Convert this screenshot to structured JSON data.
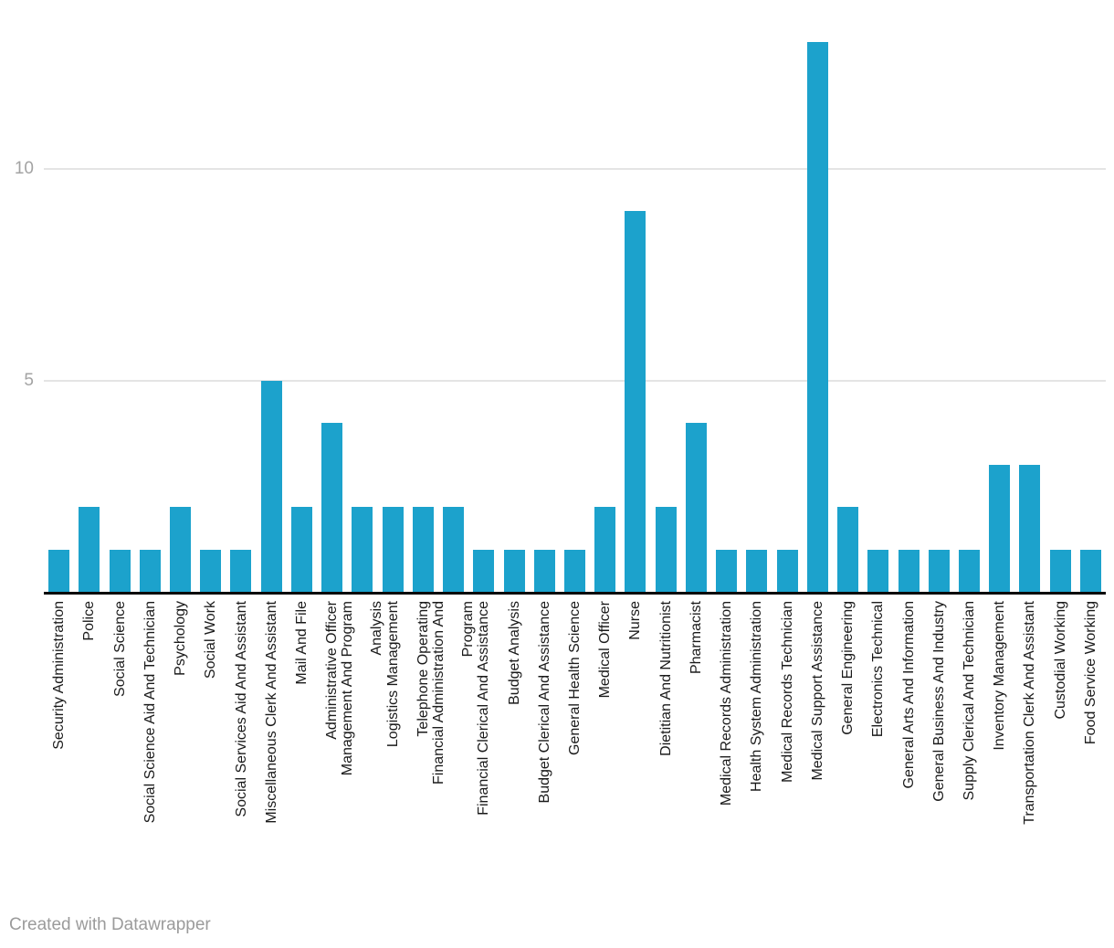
{
  "chart_data": {
    "type": "bar",
    "title": "",
    "xlabel": "",
    "ylabel": "",
    "bar_color": "#1CA2CC",
    "axis_color": "#0a0a0a",
    "gridline_color": "#e4e4e4",
    "ylim": [
      0,
      13.2
    ],
    "yticks": [
      5,
      10
    ],
    "grid": "horizontal",
    "legend_position": "none",
    "x_label_rotation": -90,
    "categories": [
      "Security Administration",
      "Police",
      "Social Science",
      "Social Science Aid And Technician",
      "Psychology",
      "Social Work",
      "Social Services Aid And Assistant",
      "Miscellaneous Clerk And Assistant",
      "Mail And File",
      "Administrative Officer",
      "Management And Program Analysis",
      "Logistics Management",
      "Telephone Operating",
      "Financial Administration And Program",
      "Financial Clerical And Assistance",
      "Budget Analysis",
      "Budget Clerical And Assistance",
      "General Health Science",
      "Medical Officer",
      "Nurse",
      "Dietitian And Nutritionist",
      "Pharmacist",
      "Medical Records Administration",
      "Health System Administration",
      "Medical Records Technician",
      "Medical Support Assistance",
      "General Engineering",
      "Electronics Technical",
      "General Arts And Information",
      "General Business And Industry",
      "Supply Clerical And Technician",
      "Inventory Management",
      "Transportation Clerk And Assistant",
      "Custodial Working",
      "Food Service Working"
    ],
    "label_lines": [
      [
        "Security Administration"
      ],
      [
        "Police"
      ],
      [
        "Social Science"
      ],
      [
        "Social Science Aid And Technician"
      ],
      [
        "Psychology"
      ],
      [
        "Social Work"
      ],
      [
        "Social Services Aid And Assistant"
      ],
      [
        "Miscellaneous Clerk And Assistant"
      ],
      [
        "Mail And File"
      ],
      [
        "Administrative Officer"
      ],
      [
        "Management And Program",
        "Analysis"
      ],
      [
        "Logistics Management"
      ],
      [
        "Telephone Operating"
      ],
      [
        "Financial Administration And",
        "Program"
      ],
      [
        "Financial Clerical And Assistance"
      ],
      [
        "Budget Analysis"
      ],
      [
        "Budget Clerical And Assistance"
      ],
      [
        "General Health Science"
      ],
      [
        "Medical Officer"
      ],
      [
        "Nurse"
      ],
      [
        "Dietitian And Nutritionist"
      ],
      [
        "Pharmacist"
      ],
      [
        "Medical Records Administration"
      ],
      [
        "Health System Administration"
      ],
      [
        "Medical Records Technician"
      ],
      [
        "Medical Support Assistance"
      ],
      [
        "General Engineering"
      ],
      [
        "Electronics Technical"
      ],
      [
        "General Arts And Information"
      ],
      [
        "General Business And Industry"
      ],
      [
        "Supply Clerical And Technician"
      ],
      [
        "Inventory Management"
      ],
      [
        "Transportation Clerk And Assistant"
      ],
      [
        "Custodial Working"
      ],
      [
        "Food Service Working"
      ]
    ],
    "values": [
      1,
      2,
      1,
      1,
      2,
      1,
      1,
      5,
      2,
      4,
      2,
      2,
      2,
      2,
      1,
      1,
      1,
      1,
      2,
      9,
      2,
      4,
      1,
      1,
      1,
      13,
      2,
      1,
      1,
      1,
      1,
      3,
      3,
      1,
      1
    ]
  },
  "footer": {
    "credit": "Created with Datawrapper"
  }
}
